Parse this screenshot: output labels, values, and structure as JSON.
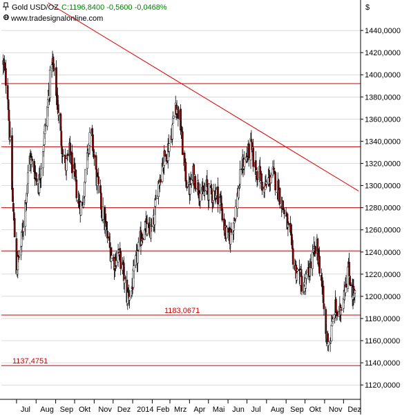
{
  "header": {
    "symbol": "Gold USD/OZ",
    "quote": "C:1196,8400 -0,5600 -0,0468%",
    "source": "www.tradesignalonline.com",
    "currency": "$",
    "icon": "pin-icon"
  },
  "colors": {
    "background": "#ffffff",
    "axis": "#000000",
    "grid": "#b4b4b4",
    "level_line": "#cc0000",
    "trend_line": "#dd0000",
    "candle_outline": "#000000",
    "candle_down": "#8b0000",
    "candle_up": "#ffffff",
    "header_quote": "#008000",
    "level_label": "#cc0000"
  },
  "chart_data": {
    "type": "candlestick",
    "y_tick_labels": [
      "1440,0000",
      "1420,0000",
      "1400,0000",
      "1380,0000",
      "1360,0000",
      "1340,0000",
      "1320,0000",
      "1300,0000",
      "1280,0000",
      "1260,0000",
      "1240,0000",
      "1220,0000",
      "1200,0000",
      "1180,0000",
      "1160,0000",
      "1140,0000",
      "1120,0000"
    ],
    "y_ticks": [
      1440,
      1420,
      1400,
      1380,
      1360,
      1340,
      1320,
      1300,
      1280,
      1260,
      1240,
      1220,
      1200,
      1180,
      1160,
      1140,
      1120
    ],
    "ylim": [
      1107,
      1465
    ],
    "x_tick_labels": [
      "Jul",
      "Aug",
      "Sep",
      "Okt",
      "Nov",
      "Dez",
      "2014",
      "Feb",
      "Mrz",
      "Apr",
      "Mai",
      "Jun",
      "Jul",
      "Aug",
      "Sep",
      "Okt",
      "Nov",
      "Dez"
    ],
    "x_ticks": [
      "2013-07-01",
      "2013-08-01",
      "2013-09-01",
      "2013-10-01",
      "2013-11-01",
      "2013-12-01",
      "2014-01-01",
      "2014-02-01",
      "2014-03-01",
      "2014-04-01",
      "2014-05-01",
      "2014-06-01",
      "2014-07-01",
      "2014-08-01",
      "2014-09-01",
      "2014-10-01",
      "2014-11-01",
      "2014-12-01"
    ],
    "xlim": [
      "2013-06-07",
      "2014-12-28"
    ],
    "horizontal_levels": [
      1392,
      1335,
      1280,
      1241,
      1183.0671,
      1137.4751
    ],
    "level_labels": [
      {
        "value": 1183.0671,
        "text": "1183,0671"
      },
      {
        "value": 1137.4751,
        "text": "1137,4751"
      }
    ],
    "trendline": {
      "start": {
        "x": "2013-08-20",
        "y": 1465
      },
      "end": {
        "x": "2014-12-25",
        "y": 1295
      }
    },
    "price_path": [
      {
        "x": "2013-06-10",
        "y": 1410
      },
      {
        "x": "2013-06-17",
        "y": 1385
      },
      {
        "x": "2013-06-25",
        "y": 1285
      },
      {
        "x": "2013-07-01",
        "y": 1225
      },
      {
        "x": "2013-07-08",
        "y": 1245
      },
      {
        "x": "2013-07-15",
        "y": 1285
      },
      {
        "x": "2013-07-22",
        "y": 1325
      },
      {
        "x": "2013-07-29",
        "y": 1315
      },
      {
        "x": "2013-08-05",
        "y": 1300
      },
      {
        "x": "2013-08-12",
        "y": 1335
      },
      {
        "x": "2013-08-19",
        "y": 1370
      },
      {
        "x": "2013-08-26",
        "y": 1415
      },
      {
        "x": "2013-09-02",
        "y": 1385
      },
      {
        "x": "2013-09-09",
        "y": 1345
      },
      {
        "x": "2013-09-16",
        "y": 1315
      },
      {
        "x": "2013-09-23",
        "y": 1330
      },
      {
        "x": "2013-09-30",
        "y": 1310
      },
      {
        "x": "2013-10-07",
        "y": 1285
      },
      {
        "x": "2013-10-14",
        "y": 1280
      },
      {
        "x": "2013-10-21",
        "y": 1335
      },
      {
        "x": "2013-10-28",
        "y": 1345
      },
      {
        "x": "2013-11-04",
        "y": 1310
      },
      {
        "x": "2013-11-11",
        "y": 1285
      },
      {
        "x": "2013-11-18",
        "y": 1265
      },
      {
        "x": "2013-11-25",
        "y": 1245
      },
      {
        "x": "2013-12-02",
        "y": 1230
      },
      {
        "x": "2013-12-09",
        "y": 1240
      },
      {
        "x": "2013-12-16",
        "y": 1225
      },
      {
        "x": "2013-12-23",
        "y": 1200
      },
      {
        "x": "2013-12-30",
        "y": 1205
      },
      {
        "x": "2014-01-06",
        "y": 1230
      },
      {
        "x": "2014-01-13",
        "y": 1250
      },
      {
        "x": "2014-01-20",
        "y": 1265
      },
      {
        "x": "2014-01-27",
        "y": 1255
      },
      {
        "x": "2014-02-03",
        "y": 1265
      },
      {
        "x": "2014-02-10",
        "y": 1300
      },
      {
        "x": "2014-02-17",
        "y": 1320
      },
      {
        "x": "2014-02-24",
        "y": 1330
      },
      {
        "x": "2014-03-03",
        "y": 1345
      },
      {
        "x": "2014-03-10",
        "y": 1375
      },
      {
        "x": "2014-03-17",
        "y": 1360
      },
      {
        "x": "2014-03-24",
        "y": 1315
      },
      {
        "x": "2014-03-31",
        "y": 1295
      },
      {
        "x": "2014-04-07",
        "y": 1310
      },
      {
        "x": "2014-04-14",
        "y": 1300
      },
      {
        "x": "2014-04-21",
        "y": 1290
      },
      {
        "x": "2014-04-28",
        "y": 1298
      },
      {
        "x": "2014-05-05",
        "y": 1290
      },
      {
        "x": "2014-05-12",
        "y": 1295
      },
      {
        "x": "2014-05-19",
        "y": 1290
      },
      {
        "x": "2014-05-26",
        "y": 1262
      },
      {
        "x": "2014-06-02",
        "y": 1250
      },
      {
        "x": "2014-06-09",
        "y": 1265
      },
      {
        "x": "2014-06-16",
        "y": 1290
      },
      {
        "x": "2014-06-23",
        "y": 1318
      },
      {
        "x": "2014-06-30",
        "y": 1325
      },
      {
        "x": "2014-07-07",
        "y": 1335
      },
      {
        "x": "2014-07-14",
        "y": 1315
      },
      {
        "x": "2014-07-21",
        "y": 1310
      },
      {
        "x": "2014-07-28",
        "y": 1295
      },
      {
        "x": "2014-08-04",
        "y": 1305
      },
      {
        "x": "2014-08-11",
        "y": 1310
      },
      {
        "x": "2014-08-18",
        "y": 1300
      },
      {
        "x": "2014-08-25",
        "y": 1285
      },
      {
        "x": "2014-09-01",
        "y": 1270
      },
      {
        "x": "2014-09-08",
        "y": 1250
      },
      {
        "x": "2014-09-15",
        "y": 1225
      },
      {
        "x": "2014-09-22",
        "y": 1220
      },
      {
        "x": "2014-09-29",
        "y": 1205
      },
      {
        "x": "2014-10-06",
        "y": 1220
      },
      {
        "x": "2014-10-13",
        "y": 1235
      },
      {
        "x": "2014-10-20",
        "y": 1245
      },
      {
        "x": "2014-10-27",
        "y": 1215
      },
      {
        "x": "2014-11-03",
        "y": 1165
      },
      {
        "x": "2014-11-10",
        "y": 1160
      },
      {
        "x": "2014-11-17",
        "y": 1190
      },
      {
        "x": "2014-11-24",
        "y": 1180
      },
      {
        "x": "2014-12-01",
        "y": 1205
      },
      {
        "x": "2014-12-08",
        "y": 1225
      },
      {
        "x": "2014-12-15",
        "y": 1205
      },
      {
        "x": "2014-12-20",
        "y": 1197
      }
    ]
  }
}
